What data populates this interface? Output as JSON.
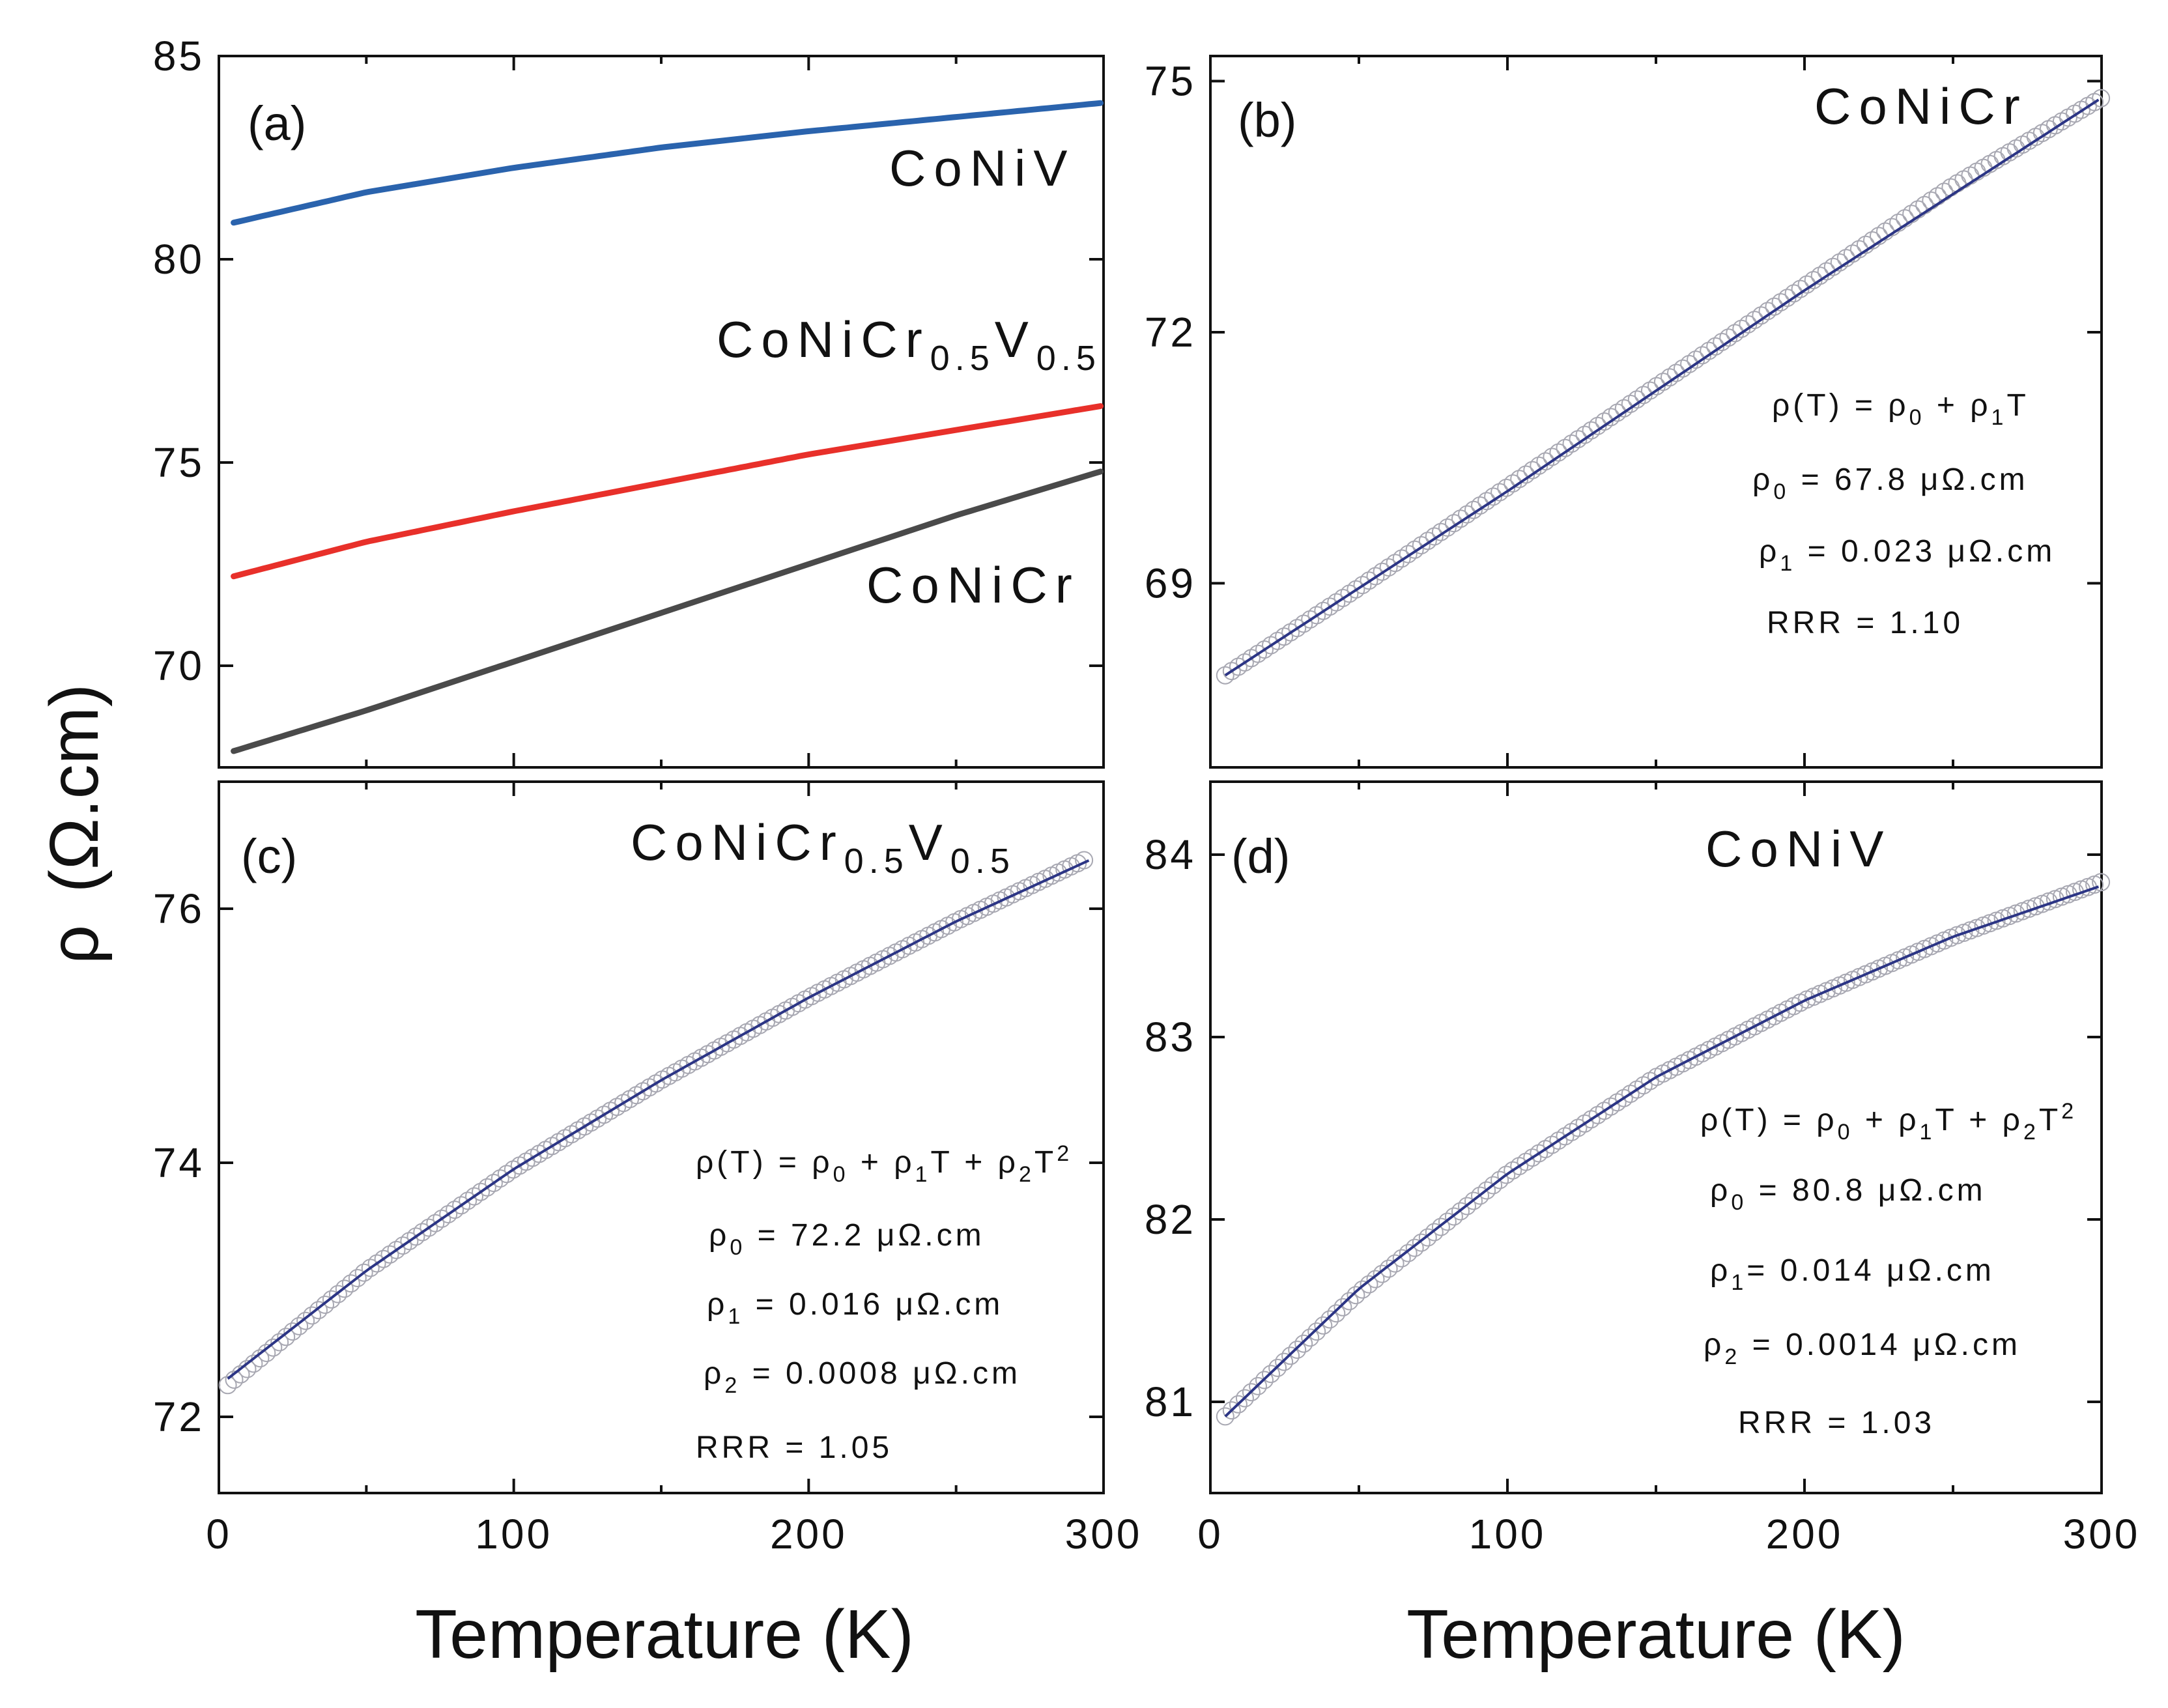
{
  "figure": {
    "ylabel_symbol": "ρ",
    "ylabel_unit": "(Ω.cm)",
    "xlabel": "Temperature (K)"
  },
  "chart_data": [
    {
      "id": "a",
      "panel_label": "(a)",
      "type": "line",
      "xlim": [
        0,
        300
      ],
      "ylim": [
        67.5,
        85
      ],
      "xticks": [
        0,
        100,
        200,
        300
      ],
      "yticks": [
        70,
        75,
        80,
        85
      ],
      "ytick_labels": [
        "70",
        "75",
        "80",
        "85"
      ],
      "show_x_tick_labels": false,
      "series": [
        {
          "name": "CoNiV",
          "color": "#2a63ad",
          "x": [
            5,
            50,
            100,
            150,
            200,
            250,
            300
          ],
          "y": [
            80.9,
            81.65,
            82.25,
            82.75,
            83.15,
            83.5,
            83.85
          ]
        },
        {
          "name": "CoNiCr0.5V0.5",
          "color": "#e8302a",
          "x": [
            5,
            50,
            100,
            150,
            200,
            250,
            300
          ],
          "y": [
            72.2,
            73.05,
            73.8,
            74.5,
            75.2,
            75.8,
            76.4
          ]
        },
        {
          "name": "CoNiCr",
          "color": "#4a4a4a",
          "x": [
            5,
            50,
            100,
            150,
            200,
            250,
            300
          ],
          "y": [
            67.9,
            68.9,
            70.1,
            71.3,
            72.5,
            73.7,
            74.8
          ]
        }
      ],
      "labels": [
        {
          "series": "CoNiV",
          "text": "CoNiV"
        },
        {
          "series": "CoNiCr0.5V0.5",
          "main": "CoNiCr",
          "sub1": "0.5",
          "mid": "V",
          "sub2": "0.5"
        },
        {
          "series": "CoNiCr",
          "text": "CoNiCr"
        }
      ]
    },
    {
      "id": "b",
      "panel_label": "(b)",
      "type": "scatter+line",
      "title": "CoNiCr",
      "xlim": [
        0,
        300
      ],
      "ylim": [
        66.8,
        75.3
      ],
      "xticks": [
        0,
        100,
        200,
        300
      ],
      "yticks": [
        69,
        72,
        75
      ],
      "ytick_labels": [
        "69",
        "72",
        "75"
      ],
      "show_x_tick_labels": false,
      "data": {
        "x": [
          5,
          50,
          100,
          150,
          200,
          250,
          300
        ],
        "y": [
          67.9,
          68.95,
          70.15,
          71.35,
          72.55,
          73.75,
          74.8
        ]
      },
      "fit": {
        "x": [
          5,
          100,
          200,
          300
        ],
        "y": [
          67.9,
          70.1,
          72.5,
          74.8
        ]
      },
      "annotations": {
        "equation": "ρ(T) = ρ0 + ρ1T",
        "rho0": "ρ0 = 67.8 μΩ.cm",
        "rho1": "ρ1 = 0.023 μΩ.cm",
        "rrr": "RRR = 1.10"
      }
    },
    {
      "id": "c",
      "panel_label": "(c)",
      "type": "scatter+line",
      "title": "CoNiCr0.5V0.5",
      "xlim": [
        0,
        300
      ],
      "ylim": [
        71.4,
        77
      ],
      "xticks": [
        0,
        100,
        200,
        300
      ],
      "yticks": [
        72,
        74,
        76
      ],
      "ytick_labels": [
        "72",
        "74",
        "76"
      ],
      "xtick_labels": [
        "0",
        "100",
        "200",
        "300"
      ],
      "data": {
        "x": [
          3,
          50,
          100,
          150,
          200,
          250,
          295
        ],
        "y": [
          72.25,
          73.15,
          73.95,
          74.65,
          75.3,
          75.9,
          76.4
        ]
      },
      "fit": {
        "x": [
          3,
          50,
          100,
          150,
          200,
          250,
          295
        ],
        "y": [
          72.3,
          73.15,
          73.95,
          74.65,
          75.3,
          75.9,
          76.38
        ]
      },
      "annotations": {
        "equation": "ρ(T) = ρ0 + ρ1T + ρ2T2",
        "rho0": "ρ0 = 72.2 μΩ.cm",
        "rho1": "ρ1 = 0.016 μΩ.cm",
        "rho2": "ρ2 = 0.0008 μΩ.cm",
        "rrr": "RRR = 1.05"
      }
    },
    {
      "id": "d",
      "panel_label": "(d)",
      "type": "scatter+line",
      "title": "CoNiV",
      "xlim": [
        0,
        300
      ],
      "ylim": [
        80.5,
        84.4
      ],
      "xticks": [
        0,
        100,
        200,
        300
      ],
      "yticks": [
        81,
        82,
        83,
        84
      ],
      "ytick_labels": [
        "81",
        "82",
        "83",
        "84"
      ],
      "xtick_labels": [
        "0",
        "100",
        "200",
        "300"
      ],
      "data": {
        "x": [
          5,
          50,
          100,
          150,
          200,
          250,
          300
        ],
        "y": [
          80.92,
          81.6,
          82.25,
          82.78,
          83.2,
          83.55,
          83.85
        ]
      },
      "fit": {
        "x": [
          5,
          50,
          100,
          150,
          200,
          250,
          300
        ],
        "y": [
          80.92,
          81.62,
          82.25,
          82.78,
          83.2,
          83.55,
          83.83
        ]
      },
      "annotations": {
        "equation": "ρ(T) = ρ0 + ρ1T + ρ2T2",
        "rho0": "ρ0 = 80.8 μΩ.cm",
        "rho1": "ρ1= 0.014 μΩ.cm",
        "rho2": "ρ2 = 0.0014 μΩ.cm",
        "rrr": "RRR = 1.03"
      }
    }
  ],
  "colors": {
    "fit_line": "#2c3585",
    "marker": "#a8a8b2",
    "frame": "#111111"
  }
}
